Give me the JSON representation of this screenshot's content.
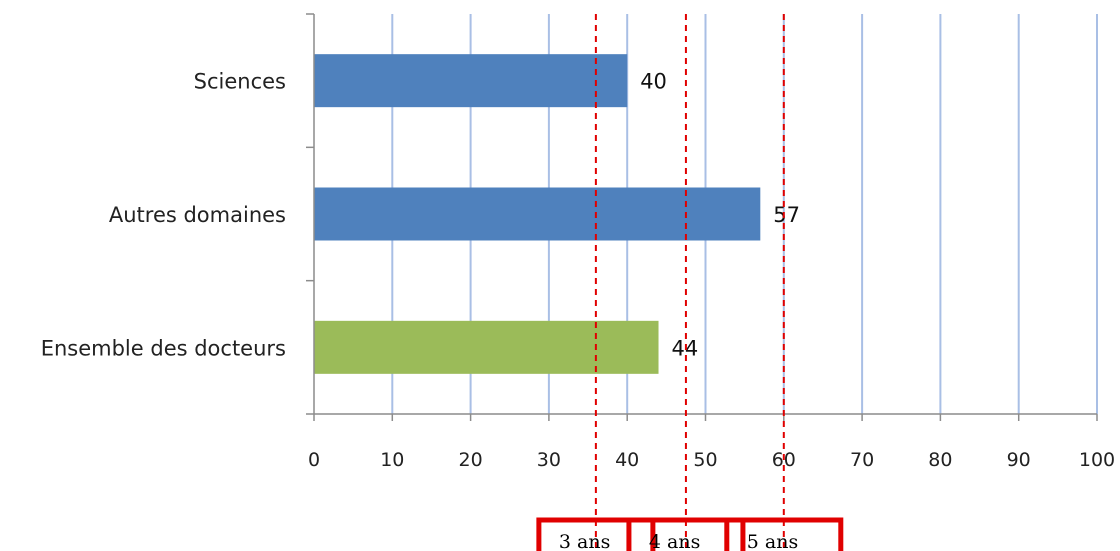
{
  "chart_data": {
    "type": "bar",
    "orientation": "horizontal",
    "title": "",
    "xlabel": "",
    "ylabel": "",
    "xlim": [
      0,
      100
    ],
    "x_ticks": [
      0,
      10,
      20,
      30,
      40,
      50,
      60,
      70,
      80,
      90,
      100
    ],
    "grid": "vertical",
    "categories": [
      "Sciences",
      "Autres domaines",
      "Ensemble des docteurs"
    ],
    "values": [
      40,
      57,
      44
    ],
    "bar_colors": [
      "#4F81BD",
      "#4F81BD",
      "#9BBB59"
    ],
    "reference_lines": [
      {
        "value": 36,
        "label": "3 ans"
      },
      {
        "value": 47.5,
        "label": "4 ans"
      },
      {
        "value": 60,
        "label": "5 ans"
      }
    ],
    "colors": {
      "grid": "#A9BFE5",
      "reference": "#E00000",
      "axis": "#8C8C8C"
    }
  }
}
